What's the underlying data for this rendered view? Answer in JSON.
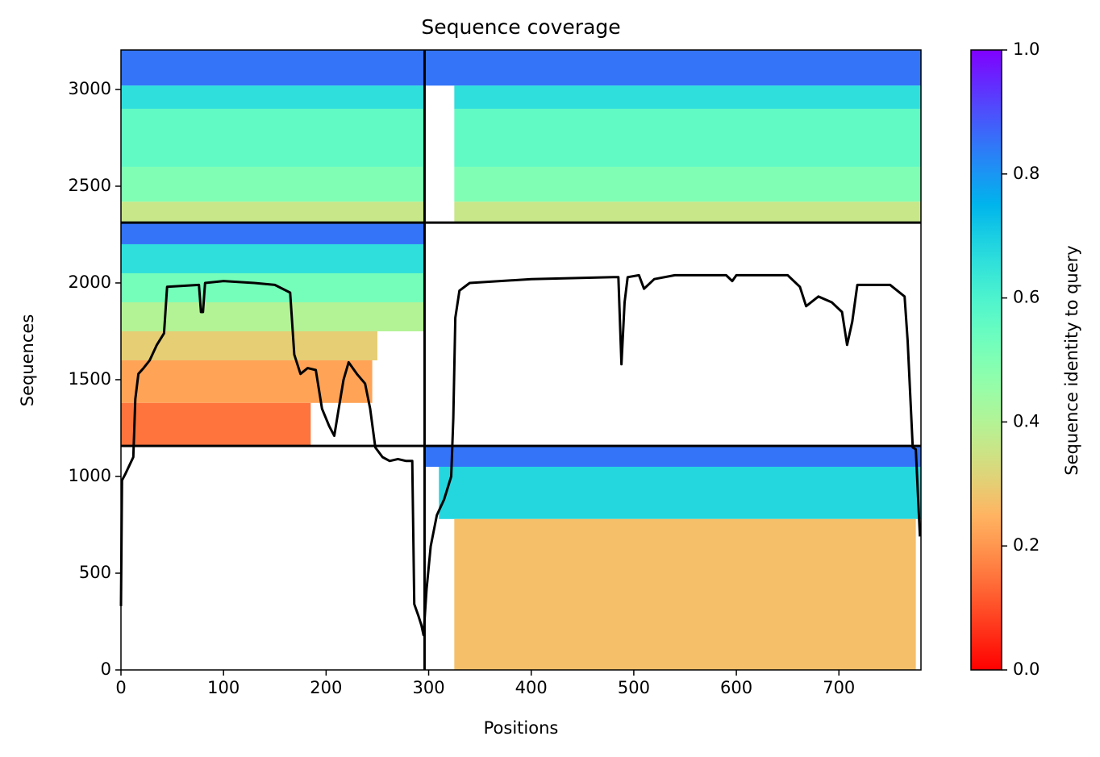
{
  "chart_data": {
    "type": "coverage",
    "title": "Sequence coverage",
    "x_label": "Positions",
    "y_label": "Sequences",
    "colorbar_label": "Sequence identity to query",
    "xlim": [
      0,
      780
    ],
    "ylim": [
      0,
      3204
    ],
    "xticks": [
      0,
      100,
      200,
      300,
      400,
      500,
      600,
      700
    ],
    "yticks": [
      0,
      500,
      1000,
      1500,
      2000,
      2500,
      3000
    ],
    "colorbar_lim": [
      0,
      1
    ],
    "colorbar_ticks": [
      {
        "value": 0,
        "label": "0.0"
      },
      {
        "value": 0.2,
        "label": "0.2"
      },
      {
        "value": 0.4,
        "label": "0.4"
      },
      {
        "value": 0.6,
        "label": "0.6"
      },
      {
        "value": 0.8,
        "label": "0.8"
      },
      {
        "value": 1,
        "label": "1.0"
      }
    ],
    "colormap": "rainbow_r",
    "boundaries": {
      "x": [
        296
      ],
      "y": [
        1158,
        2312
      ]
    },
    "blocks": [
      {
        "x": [
          0,
          296
        ],
        "y": [
          3020,
          3204
        ],
        "identity": 0.85
      },
      {
        "x": [
          0,
          296
        ],
        "y": [
          2900,
          3020
        ],
        "identity": 0.66
      },
      {
        "x": [
          0,
          296
        ],
        "y": [
          2600,
          2900
        ],
        "identity": 0.56
      },
      {
        "x": [
          0,
          296
        ],
        "y": [
          2420,
          2600
        ],
        "identity": 0.5
      },
      {
        "x": [
          0,
          296
        ],
        "y": [
          2312,
          2420
        ],
        "identity": 0.36
      },
      {
        "x": [
          296,
          780
        ],
        "y": [
          3020,
          3204
        ],
        "identity": 0.85
      },
      {
        "x": [
          325,
          780
        ],
        "y": [
          2900,
          3020
        ],
        "identity": 0.66
      },
      {
        "x": [
          325,
          780
        ],
        "y": [
          2600,
          2900
        ],
        "identity": 0.56
      },
      {
        "x": [
          325,
          780
        ],
        "y": [
          2420,
          2600
        ],
        "identity": 0.5
      },
      {
        "x": [
          325,
          780
        ],
        "y": [
          2312,
          2420
        ],
        "identity": 0.36
      },
      {
        "x": [
          0,
          296
        ],
        "y": [
          2200,
          2312
        ],
        "identity": 0.85
      },
      {
        "x": [
          0,
          296
        ],
        "y": [
          2050,
          2200
        ],
        "identity": 0.66
      },
      {
        "x": [
          0,
          296
        ],
        "y": [
          1900,
          2050
        ],
        "identity": 0.52
      },
      {
        "x": [
          0,
          296
        ],
        "y": [
          1750,
          1900
        ],
        "identity": 0.4
      },
      {
        "x": [
          0,
          250
        ],
        "y": [
          1600,
          1750
        ],
        "identity": 0.3
      },
      {
        "x": [
          0,
          245
        ],
        "y": [
          1380,
          1600
        ],
        "identity": 0.22
      },
      {
        "x": [
          0,
          185
        ],
        "y": [
          1158,
          1380
        ],
        "identity": 0.15
      },
      {
        "x": [
          296,
          780
        ],
        "y": [
          1050,
          1158
        ],
        "identity": 0.85
      },
      {
        "x": [
          310,
          780
        ],
        "y": [
          780,
          1050
        ],
        "identity": 0.68
      },
      {
        "x": [
          325,
          775
        ],
        "y": [
          0,
          780
        ],
        "identity": 0.27
      }
    ],
    "coverage": {
      "x": [
        0,
        1,
        4,
        12,
        14,
        17,
        22,
        28,
        35,
        42,
        45,
        76,
        78,
        80,
        82,
        100,
        130,
        150,
        165,
        169,
        175,
        182,
        190,
        196,
        203,
        208,
        212,
        217,
        222,
        230,
        238,
        243,
        248,
        255,
        262,
        270,
        278,
        284,
        286,
        290,
        293,
        295,
        298,
        302,
        308,
        315,
        322,
        324,
        326,
        330,
        340,
        400,
        480,
        485,
        488,
        491,
        494,
        505,
        510,
        520,
        540,
        590,
        596,
        600,
        650,
        662,
        668,
        680,
        693,
        703,
        708,
        713,
        718,
        750,
        764,
        767,
        772,
        775,
        779
      ],
      "values": [
        330,
        980,
        1010,
        1100,
        1400,
        1530,
        1560,
        1600,
        1680,
        1740,
        1980,
        1990,
        1850,
        1850,
        2000,
        2010,
        2000,
        1990,
        1950,
        1630,
        1530,
        1560,
        1550,
        1350,
        1260,
        1210,
        1340,
        1500,
        1590,
        1530,
        1480,
        1350,
        1150,
        1100,
        1080,
        1090,
        1080,
        1080,
        340,
        280,
        230,
        180,
        420,
        640,
        800,
        880,
        1000,
        1300,
        1820,
        1960,
        2000,
        2020,
        2030,
        2030,
        1580,
        1900,
        2030,
        2040,
        1970,
        2020,
        2040,
        2040,
        2010,
        2040,
        2040,
        1980,
        1880,
        1930,
        1900,
        1850,
        1680,
        1800,
        1990,
        1990,
        1930,
        1700,
        1150,
        1140,
        690
      ],
      "color": "#000000"
    }
  }
}
